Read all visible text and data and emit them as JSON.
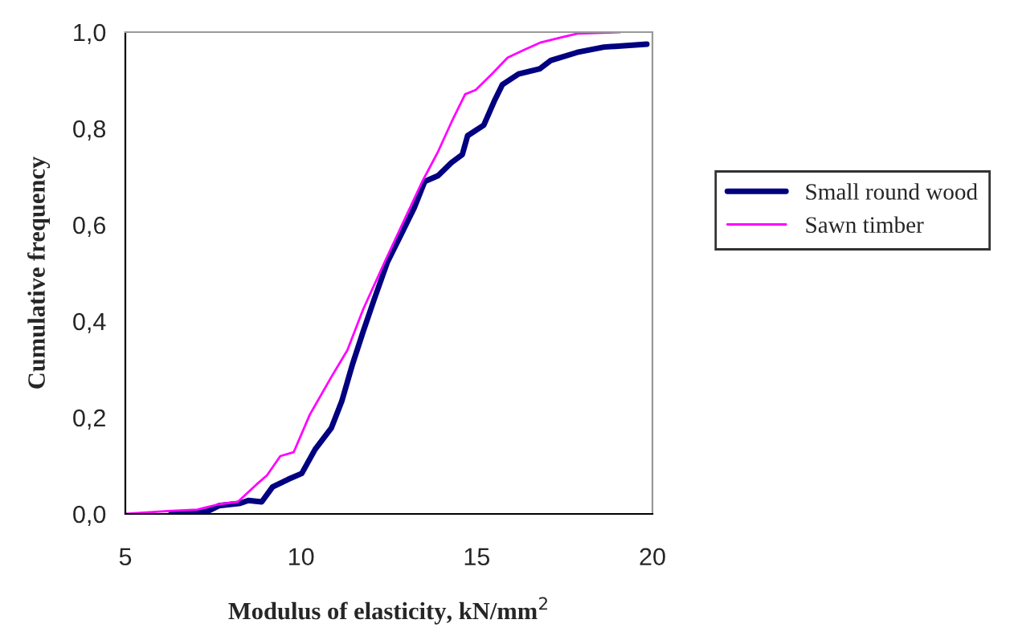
{
  "chart_data": {
    "type": "line",
    "xlabel": "Modulus of elasticity, kN/mm$^{2}$",
    "ylabel": "Cumulative frequency",
    "xlim": [
      5,
      20
    ],
    "xticks": [
      5,
      10,
      15,
      20
    ],
    "ylim": [
      0,
      1
    ],
    "yticks": [
      {
        "value": 0,
        "label": "0,0"
      },
      {
        "value": 0.2,
        "label": "0,2"
      },
      {
        "value": 0.4,
        "label": "0,4"
      },
      {
        "value": 0.6,
        "label": "0,6"
      },
      {
        "value": 0.8,
        "label": "0,8"
      },
      {
        "value": 1,
        "label": "1,0"
      }
    ],
    "grid": false,
    "legend": "right",
    "marker": "none",
    "line_style": "solid",
    "series": [
      {
        "name": "Small round wood",
        "color": "#000080",
        "x": [
          6.3,
          7.36,
          7.66,
          8.27,
          8.5,
          8.88,
          9.19,
          9.64,
          10.02,
          10.4,
          10.86,
          11.16,
          11.47,
          11.77,
          12.08,
          12.46,
          12.84,
          13.22,
          13.52,
          13.9,
          14.28,
          14.59,
          14.74,
          15.2,
          15.5,
          15.73,
          16.19,
          16.8,
          17.1,
          17.86,
          18.62,
          19.84
        ],
        "values": [
          0,
          0.006,
          0.017,
          0.022,
          0.028,
          0.025,
          0.056,
          0.072,
          0.084,
          0.134,
          0.178,
          0.234,
          0.312,
          0.379,
          0.445,
          0.523,
          0.579,
          0.635,
          0.69,
          0.702,
          0.729,
          0.746,
          0.785,
          0.807,
          0.857,
          0.891,
          0.913,
          0.924,
          0.941,
          0.958,
          0.969,
          0.975
        ]
      },
      {
        "name": "Sawn timber",
        "color": "#ff00ff",
        "x": [
          5,
          6.22,
          7.05,
          7.66,
          8.2,
          8.73,
          9.03,
          9.41,
          9.79,
          10.25,
          10.86,
          11.32,
          11.77,
          12.38,
          12.99,
          13.45,
          13.9,
          14.28,
          14.67,
          14.97,
          15.43,
          15.88,
          16.34,
          16.8,
          17.4,
          17.86,
          19.08
        ],
        "values": [
          0,
          0.006,
          0.009,
          0.02,
          0.025,
          0.061,
          0.08,
          0.12,
          0.128,
          0.206,
          0.284,
          0.34,
          0.425,
          0.523,
          0.618,
          0.69,
          0.752,
          0.813,
          0.871,
          0.88,
          0.913,
          0.947,
          0.963,
          0.978,
          0.989,
          0.997,
          1.0
        ]
      }
    ]
  }
}
